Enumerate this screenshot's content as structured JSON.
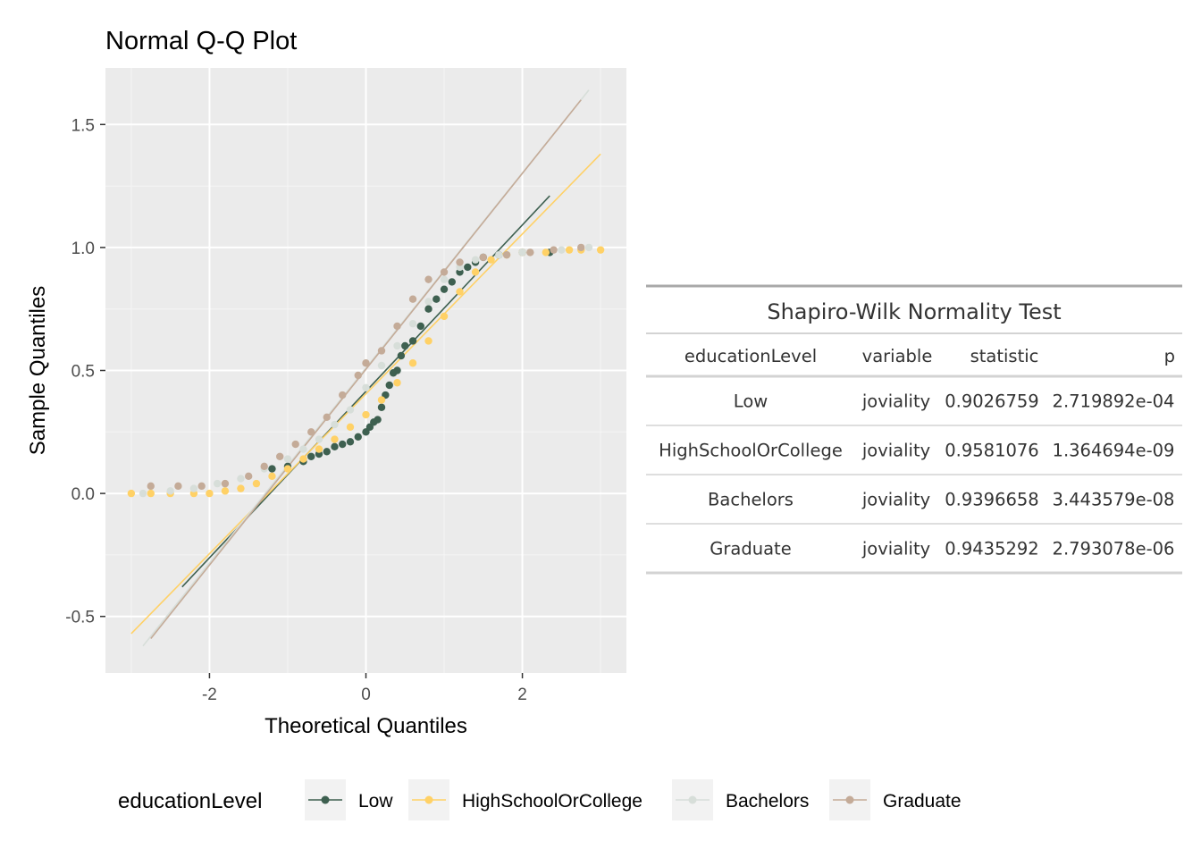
{
  "chart_data": {
    "type": "scatter",
    "subtype": "normal-qq",
    "title": "Normal Q-Q Plot",
    "xlabel": "Theoretical Quantiles",
    "ylabel": "Sample Quantiles",
    "xlim": [
      -3.33,
      3.33
    ],
    "ylim": [
      -0.73,
      1.73
    ],
    "x_ticks": [
      -2,
      0,
      2
    ],
    "x_tick_labels": [
      "-2",
      "0",
      "2"
    ],
    "y_ticks": [
      -0.5,
      0.0,
      0.5,
      1.0,
      1.5
    ],
    "y_tick_labels": [
      "-0.5",
      "0.0",
      "0.5",
      "1.0",
      "1.5"
    ],
    "grid": true,
    "legend": {
      "title": "educationLevel",
      "position": "bottom"
    },
    "series": [
      {
        "name": "Low",
        "color": "#3e6050",
        "points": [
          [
            -1.2,
            0.1
          ],
          [
            -1.0,
            0.11
          ],
          [
            -0.8,
            0.13
          ],
          [
            -0.7,
            0.15
          ],
          [
            -0.6,
            0.16
          ],
          [
            -0.5,
            0.17
          ],
          [
            -0.4,
            0.19
          ],
          [
            -0.3,
            0.2
          ],
          [
            -0.2,
            0.21
          ],
          [
            -0.1,
            0.23
          ],
          [
            0.0,
            0.25
          ],
          [
            0.05,
            0.27
          ],
          [
            0.1,
            0.29
          ],
          [
            0.15,
            0.3
          ],
          [
            0.2,
            0.35
          ],
          [
            0.25,
            0.4
          ],
          [
            0.3,
            0.44
          ],
          [
            0.35,
            0.49
          ],
          [
            0.4,
            0.5
          ],
          [
            0.45,
            0.56
          ],
          [
            0.5,
            0.6
          ],
          [
            0.6,
            0.62
          ],
          [
            0.7,
            0.68
          ],
          [
            0.8,
            0.75
          ],
          [
            0.9,
            0.79
          ],
          [
            1.0,
            0.83
          ],
          [
            1.1,
            0.86
          ],
          [
            1.2,
            0.9
          ],
          [
            1.3,
            0.92
          ],
          [
            1.4,
            0.94
          ],
          [
            1.5,
            0.96
          ],
          [
            1.7,
            0.97
          ],
          [
            2.0,
            0.98
          ],
          [
            2.35,
            0.98
          ]
        ],
        "ref_line": [
          [
            -2.35,
            -0.38
          ],
          [
            2.35,
            1.21
          ]
        ]
      },
      {
        "name": "HighSchoolOrCollege",
        "color": "#ffd166",
        "points": [
          [
            -3.0,
            0.0
          ],
          [
            -2.75,
            0.0
          ],
          [
            -2.5,
            0.0
          ],
          [
            -2.2,
            0.0
          ],
          [
            -2.0,
            0.0
          ],
          [
            -1.8,
            0.01
          ],
          [
            -1.6,
            0.02
          ],
          [
            -1.4,
            0.04
          ],
          [
            -1.2,
            0.07
          ],
          [
            -1.0,
            0.1
          ],
          [
            -0.8,
            0.14
          ],
          [
            -0.6,
            0.18
          ],
          [
            -0.4,
            0.22
          ],
          [
            -0.2,
            0.27
          ],
          [
            0.0,
            0.32
          ],
          [
            0.2,
            0.38
          ],
          [
            0.4,
            0.45
          ],
          [
            0.6,
            0.53
          ],
          [
            0.8,
            0.62
          ],
          [
            1.0,
            0.72
          ],
          [
            1.2,
            0.82
          ],
          [
            1.4,
            0.9
          ],
          [
            1.6,
            0.95
          ],
          [
            1.8,
            0.97
          ],
          [
            2.0,
            0.98
          ],
          [
            2.3,
            0.98
          ],
          [
            2.6,
            0.99
          ],
          [
            2.75,
            0.99
          ],
          [
            3.0,
            0.99
          ]
        ],
        "ref_line": [
          [
            -3.0,
            -0.57
          ],
          [
            3.0,
            1.38
          ]
        ]
      },
      {
        "name": "Bachelors",
        "color": "#d7ded9",
        "points": [
          [
            -2.85,
            0.0
          ],
          [
            -2.5,
            0.01
          ],
          [
            -2.2,
            0.02
          ],
          [
            -1.9,
            0.04
          ],
          [
            -1.6,
            0.06
          ],
          [
            -1.3,
            0.1
          ],
          [
            -1.0,
            0.14
          ],
          [
            -0.8,
            0.18
          ],
          [
            -0.6,
            0.22
          ],
          [
            -0.4,
            0.28
          ],
          [
            -0.2,
            0.34
          ],
          [
            0.0,
            0.43
          ],
          [
            0.2,
            0.52
          ],
          [
            0.4,
            0.6
          ],
          [
            0.6,
            0.69
          ],
          [
            0.8,
            0.78
          ],
          [
            1.0,
            0.87
          ],
          [
            1.2,
            0.92
          ],
          [
            1.4,
            0.95
          ],
          [
            1.7,
            0.97
          ],
          [
            2.0,
            0.98
          ],
          [
            2.5,
            0.99
          ],
          [
            2.85,
            1.0
          ]
        ],
        "ref_line": [
          [
            -2.85,
            -0.62
          ],
          [
            2.85,
            1.64
          ]
        ]
      },
      {
        "name": "Graduate",
        "color": "#c4ab98",
        "points": [
          [
            -2.75,
            0.03
          ],
          [
            -2.4,
            0.03
          ],
          [
            -2.1,
            0.03
          ],
          [
            -1.8,
            0.04
          ],
          [
            -1.5,
            0.07
          ],
          [
            -1.3,
            0.11
          ],
          [
            -1.1,
            0.15
          ],
          [
            -0.9,
            0.2
          ],
          [
            -0.7,
            0.25
          ],
          [
            -0.5,
            0.31
          ],
          [
            -0.3,
            0.4
          ],
          [
            -0.1,
            0.48
          ],
          [
            0.0,
            0.53
          ],
          [
            0.2,
            0.58
          ],
          [
            0.4,
            0.68
          ],
          [
            0.6,
            0.79
          ],
          [
            0.8,
            0.87
          ],
          [
            1.0,
            0.9
          ],
          [
            1.2,
            0.94
          ],
          [
            1.5,
            0.96
          ],
          [
            1.8,
            0.97
          ],
          [
            2.1,
            0.98
          ],
          [
            2.4,
            0.99
          ],
          [
            2.75,
            1.0
          ]
        ],
        "ref_line": [
          [
            -2.75,
            -0.59
          ],
          [
            2.75,
            1.6
          ]
        ]
      }
    ]
  },
  "table": {
    "title": "Shapiro-Wilk Normality Test",
    "columns": [
      "educationLevel",
      "variable",
      "statistic",
      "p"
    ],
    "rows": [
      [
        "Low",
        "joviality",
        "0.9026759",
        "2.719892e-04"
      ],
      [
        "HighSchoolOrCollege",
        "joviality",
        "0.9581076",
        "1.364694e-09"
      ],
      [
        "Bachelors",
        "joviality",
        "0.9396658",
        "3.443579e-08"
      ],
      [
        "Graduate",
        "joviality",
        "0.9435292",
        "2.793078e-06"
      ]
    ]
  }
}
